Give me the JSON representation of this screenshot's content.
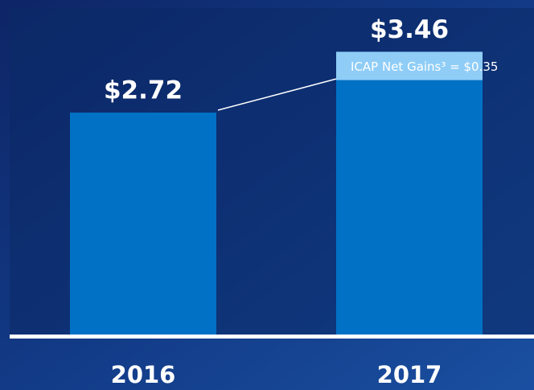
{
  "chart_data": {
    "type": "bar",
    "stacked": true,
    "categories": [
      "2016",
      "2017"
    ],
    "series": [
      {
        "color": "#0071c5",
        "values": [
          2.72,
          3.11
        ]
      },
      {
        "color": "#8fcdf7",
        "values": [
          null,
          0.35
        ]
      }
    ],
    "totals": [
      2.72,
      3.46
    ],
    "total_labels": [
      "$2.72",
      "$3.46"
    ],
    "annotation": "ICAP Net Gains³ = $0.35",
    "ylim": [
      0,
      4.09
    ]
  }
}
